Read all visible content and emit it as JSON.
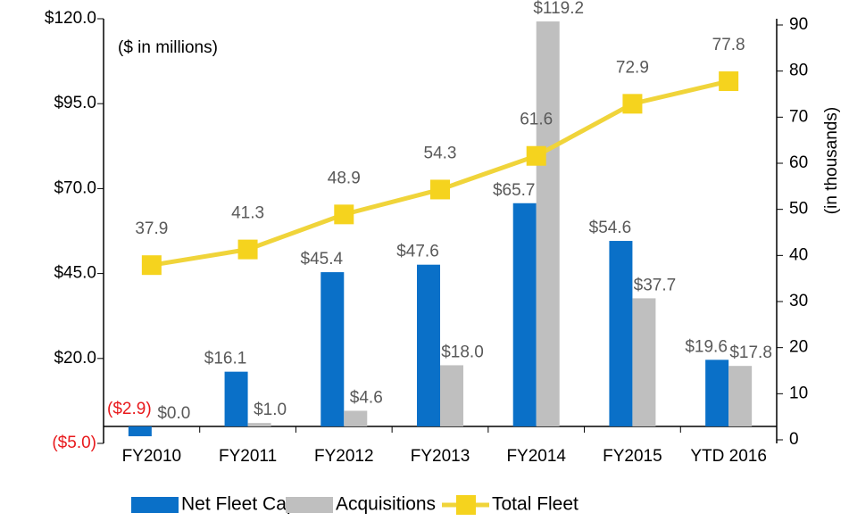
{
  "chart_data": {
    "type": "bar",
    "annotation": "($ in millions)",
    "y2label": "(in thousands)",
    "categories": [
      "FY2010",
      "FY2011",
      "FY2012",
      "FY2013",
      "FY2014",
      "FY2015",
      "YTD 2016"
    ],
    "series": [
      {
        "name": "Net Fleet CapEx",
        "color": "#0a70c8",
        "values": [
          -2.9,
          16.1,
          45.4,
          47.6,
          65.7,
          54.6,
          19.6
        ],
        "value_labels": [
          "($2.9)",
          "$16.1",
          "$45.4",
          "$47.6",
          "$65.7",
          "$54.6",
          "$19.6"
        ]
      },
      {
        "name": "Acquisitions",
        "color": "#bfbfbf",
        "values": [
          0.0,
          1.0,
          4.6,
          18.0,
          119.2,
          37.7,
          17.8
        ],
        "value_labels": [
          "$0.0",
          "$1.0",
          "$4.6",
          "$18.0",
          "$119.2",
          "$37.7",
          "$17.8"
        ]
      },
      {
        "name": "Total Fleet",
        "type": "line",
        "axis": "y2",
        "color": "#f0d43a",
        "marker_color": "#f5d31e",
        "values": [
          37.9,
          41.3,
          48.9,
          54.3,
          61.6,
          72.9,
          77.8
        ]
      }
    ],
    "ylim": [
      -5,
      120
    ],
    "yticks": [
      {
        "value": -5,
        "label": "($5.0)"
      },
      {
        "value": 20,
        "label": "$20.0"
      },
      {
        "value": 45,
        "label": "$45.0"
      },
      {
        "value": 70,
        "label": "$70.0"
      },
      {
        "value": 95,
        "label": "$95.0"
      },
      {
        "value": 120,
        "label": "$120.0"
      }
    ],
    "y2lim": [
      0,
      90
    ],
    "y2ticks": [
      0,
      10,
      20,
      30,
      40,
      50,
      60,
      70,
      80,
      90
    ],
    "negative_color": "#e8191c",
    "legend": "bottom"
  }
}
